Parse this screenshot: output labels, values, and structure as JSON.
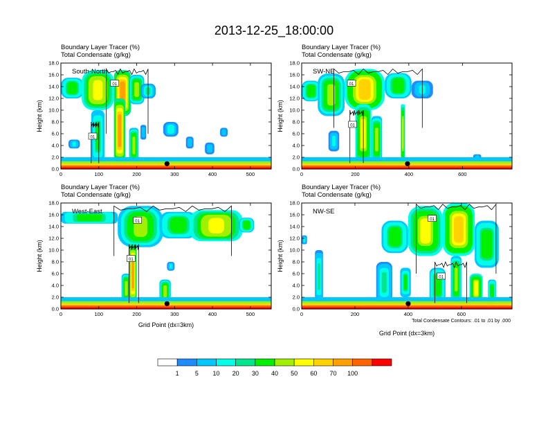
{
  "figure": {
    "title": "2013-12-25_18:00:00",
    "panel_subtitle_line1": "Boundary Layer Tracer   (%)",
    "panel_subtitle_line2": "Total Condensate   (g/kg)",
    "ylabel": "Height (km)",
    "xlabel": "Grid Point (dx=3km)",
    "contour_note": "Total Condensate Contours: .01 to .01 by .000",
    "contour_label": "01"
  },
  "colorbar": {
    "levels": [
      "1",
      "5",
      "10",
      "20",
      "30",
      "40",
      "50",
      "60",
      "70",
      "100"
    ],
    "colors": [
      "#ffffff",
      "#1e8cff",
      "#00c8ff",
      "#00ffe6",
      "#00e68c",
      "#00f000",
      "#a0f000",
      "#ffff00",
      "#ffd200",
      "#ffa000",
      "#ff6400",
      "#ff0000"
    ]
  },
  "chart_data": [
    {
      "type": "heatmap",
      "name": "South-North",
      "title": "South-North",
      "xlim": [
        0,
        555
      ],
      "ylim": [
        0,
        18
      ],
      "xticks": [
        0,
        100,
        200,
        300,
        400,
        500
      ],
      "yticks": [
        "0.0",
        "2.0",
        "4.0",
        "6.0",
        "8.0",
        "10.0",
        "12.0",
        "14.0",
        "16.0",
        "18.0"
      ],
      "marker_x": 280,
      "show_xlabel": false,
      "plumes": [
        {
          "x": 0,
          "w": 60,
          "base": 12,
          "top": 15.5,
          "v": 25
        },
        {
          "x": 55,
          "w": 85,
          "base": 10,
          "top": 16.8,
          "v": 45
        },
        {
          "x": 140,
          "w": 45,
          "base": 9,
          "top": 16.8,
          "v": 60
        },
        {
          "x": 180,
          "w": 40,
          "base": 11,
          "top": 16,
          "v": 35
        },
        {
          "x": 210,
          "w": 40,
          "base": 12,
          "top": 14.5,
          "v": 15
        },
        {
          "x": 80,
          "w": 35,
          "base": 1,
          "top": 10,
          "v": 20
        },
        {
          "x": 140,
          "w": 30,
          "base": 1,
          "top": 12,
          "v": 65
        },
        {
          "x": 180,
          "w": 25,
          "base": 1,
          "top": 7,
          "v": 30
        },
        {
          "x": 210,
          "w": 15,
          "base": 5,
          "top": 7.5,
          "v": 8
        },
        {
          "x": 20,
          "w": 30,
          "base": 3.5,
          "top": 5,
          "v": 10
        },
        {
          "x": 270,
          "w": 40,
          "base": 5.5,
          "top": 8,
          "v": 12
        },
        {
          "x": 330,
          "w": 20,
          "base": 3.5,
          "top": 5.5,
          "v": 8
        },
        {
          "x": 380,
          "w": 25,
          "base": 2.5,
          "top": 4.5,
          "v": 8
        },
        {
          "x": 420,
          "w": 20,
          "base": 5.5,
          "top": 7,
          "v": 8
        }
      ],
      "contours": [
        {
          "x": 120,
          "w": 110,
          "base": 6,
          "top": 17
        },
        {
          "x": 80,
          "w": 20,
          "base": 1,
          "top": 8
        }
      ]
    },
    {
      "type": "heatmap",
      "name": "SW-NE",
      "title": "SW-NE",
      "xlim": [
        0,
        785
      ],
      "ylim": [
        0,
        18
      ],
      "xticks": [
        0,
        200,
        400,
        600
      ],
      "yticks": [
        "0.0",
        "2.0",
        "4.0",
        "6.0",
        "8.0",
        "10.0",
        "12.0",
        "14.0",
        "16.0",
        "18.0"
      ],
      "marker_x": 395,
      "show_xlabel": false,
      "plumes": [
        {
          "x": 0,
          "w": 70,
          "base": 11.5,
          "top": 15,
          "v": 25
        },
        {
          "x": 60,
          "w": 100,
          "base": 9,
          "top": 16.2,
          "v": 30
        },
        {
          "x": 160,
          "w": 150,
          "base": 10,
          "top": 17,
          "v": 50
        },
        {
          "x": 310,
          "w": 100,
          "base": 12,
          "top": 16.3,
          "v": 25
        },
        {
          "x": 410,
          "w": 80,
          "base": 12,
          "top": 15,
          "v": 10
        },
        {
          "x": 200,
          "w": 60,
          "base": 1,
          "top": 11,
          "v": 40
        },
        {
          "x": 260,
          "w": 40,
          "base": 1,
          "top": 9,
          "v": 30
        },
        {
          "x": 370,
          "w": 15,
          "base": 1,
          "top": 11,
          "v": 40
        },
        {
          "x": 100,
          "w": 40,
          "base": 3,
          "top": 6.5,
          "v": 10
        },
        {
          "x": 640,
          "w": 30,
          "base": 1.5,
          "top": 2.5,
          "v": 8
        }
      ],
      "contours": [
        {
          "x": 120,
          "w": 330,
          "base": 7,
          "top": 17
        },
        {
          "x": 180,
          "w": 50,
          "base": 1,
          "top": 10
        }
      ]
    },
    {
      "type": "heatmap",
      "name": "West-East",
      "title": "West-East",
      "xlim": [
        0,
        555
      ],
      "ylim": [
        0,
        18
      ],
      "xticks": [
        0,
        100,
        200,
        300,
        400,
        500
      ],
      "yticks": [
        "0.0",
        "2.0",
        "4.0",
        "6.0",
        "8.0",
        "10.0",
        "12.0",
        "14.0",
        "16.0",
        "18.0"
      ],
      "marker_x": 280,
      "show_xlabel": true,
      "plumes": [
        {
          "x": 0,
          "w": 150,
          "base": 14.5,
          "top": 16.5,
          "v": 25
        },
        {
          "x": 150,
          "w": 120,
          "base": 10.5,
          "top": 17.5,
          "v": 35
        },
        {
          "x": 260,
          "w": 100,
          "base": 12,
          "top": 16.5,
          "v": 25
        },
        {
          "x": 340,
          "w": 140,
          "base": 11.5,
          "top": 16.8,
          "v": 45
        },
        {
          "x": 470,
          "w": 40,
          "base": 13,
          "top": 15.5,
          "v": 25
        },
        {
          "x": 160,
          "w": 25,
          "base": 1,
          "top": 6,
          "v": 30
        },
        {
          "x": 180,
          "w": 20,
          "base": 1,
          "top": 11,
          "v": 60
        },
        {
          "x": 260,
          "w": 30,
          "base": 1,
          "top": 5,
          "v": 30
        },
        {
          "x": 280,
          "w": 20,
          "base": 6.5,
          "top": 8,
          "v": 10
        }
      ],
      "contours": [
        {
          "x": 140,
          "w": 310,
          "base": 9,
          "top": 17.5
        },
        {
          "x": 180,
          "w": 25,
          "base": 1,
          "top": 11
        }
      ]
    },
    {
      "type": "heatmap",
      "name": "NW-SE",
      "title": "NW-SE",
      "xlim": [
        0,
        790
      ],
      "ylim": [
        0,
        18
      ],
      "xticks": [
        0,
        200,
        400,
        600
      ],
      "yticks": [
        "0.0",
        "2.0",
        "4.0",
        "6.0",
        "8.0",
        "10.0",
        "12.0",
        "14.0",
        "16.0",
        "18.0"
      ],
      "marker_x": 400,
      "show_xlabel": true,
      "plumes": [
        {
          "x": 0,
          "w": 20,
          "base": 11,
          "top": 12.5,
          "v": 10
        },
        {
          "x": 300,
          "w": 100,
          "base": 9.5,
          "top": 15,
          "v": 25
        },
        {
          "x": 400,
          "w": 130,
          "base": 9,
          "top": 17.5,
          "v": 40
        },
        {
          "x": 530,
          "w": 120,
          "base": 9,
          "top": 18,
          "v": 50
        },
        {
          "x": 650,
          "w": 90,
          "base": 7,
          "top": 15,
          "v": 25
        },
        {
          "x": 50,
          "w": 30,
          "base": 1,
          "top": 10,
          "v": 15
        },
        {
          "x": 280,
          "w": 60,
          "base": 1,
          "top": 8,
          "v": 15
        },
        {
          "x": 370,
          "w": 40,
          "base": 2,
          "top": 7,
          "v": 20
        },
        {
          "x": 480,
          "w": 60,
          "base": 1,
          "top": 7,
          "v": 25
        },
        {
          "x": 560,
          "w": 40,
          "base": 1,
          "top": 9,
          "v": 35
        },
        {
          "x": 630,
          "w": 50,
          "base": 1,
          "top": 6,
          "v": 40
        },
        {
          "x": 700,
          "w": 30,
          "base": 0.5,
          "top": 5,
          "v": 25
        }
      ],
      "contours": [
        {
          "x": 430,
          "w": 300,
          "base": 6,
          "top": 17.8
        },
        {
          "x": 500,
          "w": 120,
          "base": 1,
          "top": 8
        }
      ]
    }
  ]
}
